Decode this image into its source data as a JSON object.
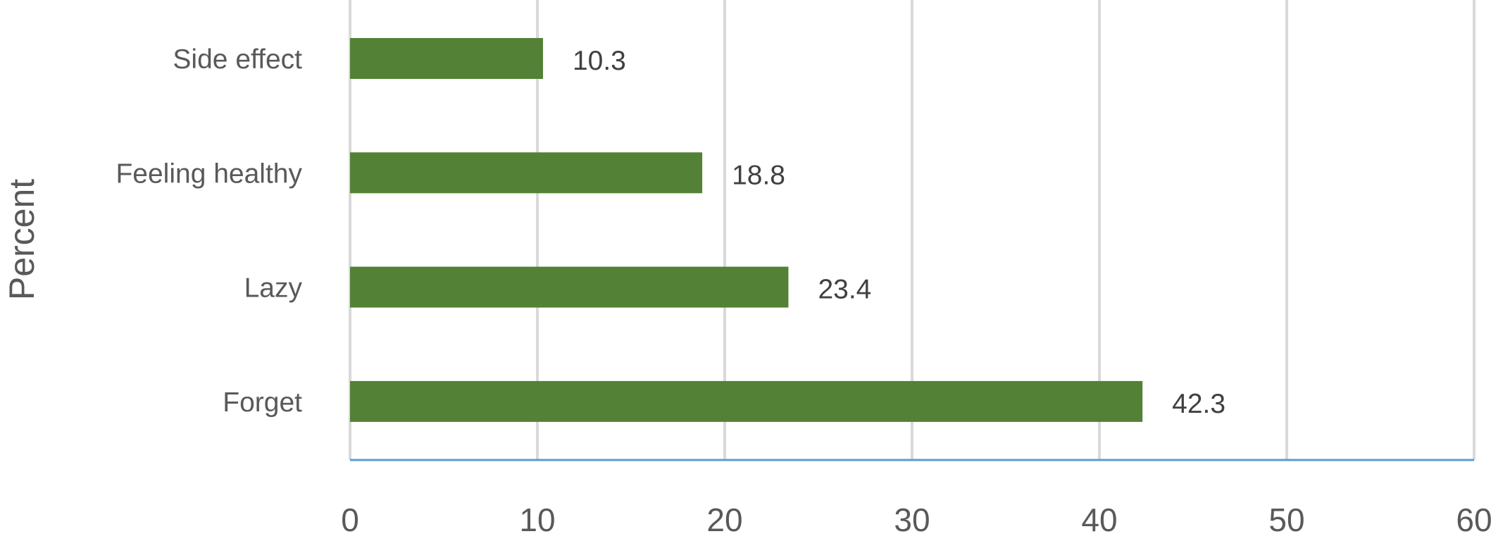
{
  "chart_data": {
    "type": "bar",
    "orientation": "horizontal",
    "categories": [
      "Side effect",
      "Feeling healthy",
      "Lazy",
      "Forget"
    ],
    "values": [
      10.3,
      18.8,
      23.4,
      42.3
    ],
    "ylabel": "Percent",
    "xlim": [
      0,
      60
    ],
    "x_ticks": [
      "0",
      "10",
      "20",
      "30",
      "40",
      "50",
      "60"
    ],
    "data_labels": [
      "10.3",
      "18.8",
      "23.4",
      "42.3"
    ],
    "grid": true,
    "legend": "none",
    "colors": {
      "bar": "#538135",
      "grid": "#d9d9d9",
      "axis_line": "#5b9bd5"
    }
  }
}
